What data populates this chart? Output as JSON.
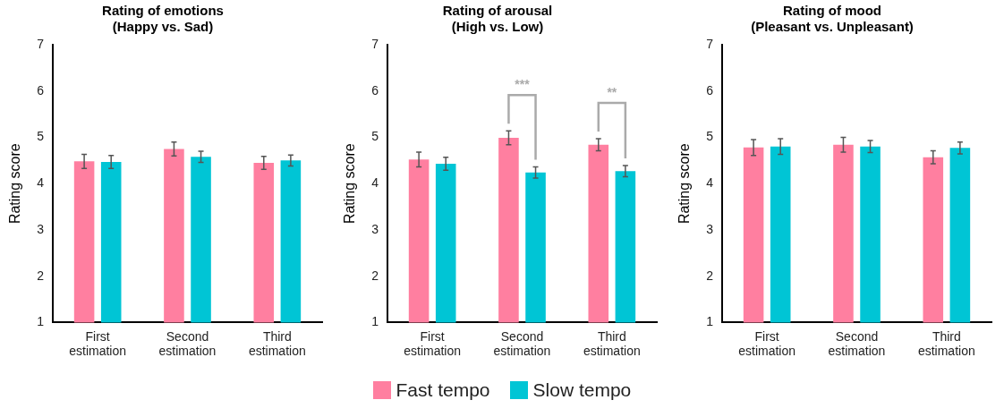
{
  "chart_data": [
    {
      "type": "bar",
      "title": "Rating of emotions\n(Happy vs. Sad)",
      "ylabel": "Rating score",
      "categories": [
        "First estimation",
        "Second estimation",
        "Third estimation"
      ],
      "ylim": [
        1,
        7
      ],
      "yticks": [
        1,
        2,
        3,
        4,
        5,
        6,
        7
      ],
      "grid": false,
      "legend": "bottom",
      "series": [
        {
          "name": "Fast tempo",
          "color": "#ff7fa0",
          "values": [
            4.48,
            4.75,
            4.45
          ],
          "errors": [
            0.15,
            0.15,
            0.14
          ]
        },
        {
          "name": "Slow tempo",
          "color": "#00c5d5",
          "values": [
            4.47,
            4.58,
            4.5
          ],
          "errors": [
            0.14,
            0.12,
            0.12
          ]
        }
      ]
    },
    {
      "type": "bar",
      "title": "Rating of arousal\n(High vs. Low)",
      "ylabel": "Rating score",
      "categories": [
        "First estimation",
        "Second estimation",
        "Third estimation"
      ],
      "ylim": [
        1,
        7
      ],
      "yticks": [
        1,
        2,
        3,
        4,
        5,
        6,
        7
      ],
      "grid": false,
      "annotations": [
        "***",
        "**"
      ],
      "series": [
        {
          "color": "#ff7fa0",
          "values": [
            4.52,
            4.99,
            4.84
          ],
          "errors": [
            0.16,
            0.15,
            0.13
          ]
        },
        {
          "color": "#00c5d5",
          "values": [
            4.43,
            4.24,
            4.27
          ],
          "errors": [
            0.14,
            0.12,
            0.12
          ]
        }
      ]
    },
    {
      "type": "bar",
      "title": "Rating of mood\n(Pleasant vs. Unpleasant)",
      "ylabel": "Rating score",
      "categories": [
        "First estimation",
        "Second estimation",
        "Third estimation"
      ],
      "ylim": [
        1,
        7
      ],
      "yticks": [
        1,
        2,
        3,
        4,
        5,
        6,
        7
      ],
      "grid": false,
      "series": [
        {
          "color": "#ff7fa0",
          "values": [
            4.78,
            4.84,
            4.57
          ],
          "errors": [
            0.17,
            0.16,
            0.14
          ]
        },
        {
          "color": "#00c5d5",
          "values": [
            4.8,
            4.8,
            4.77
          ],
          "errors": [
            0.17,
            0.13,
            0.13
          ]
        }
      ]
    }
  ]
}
